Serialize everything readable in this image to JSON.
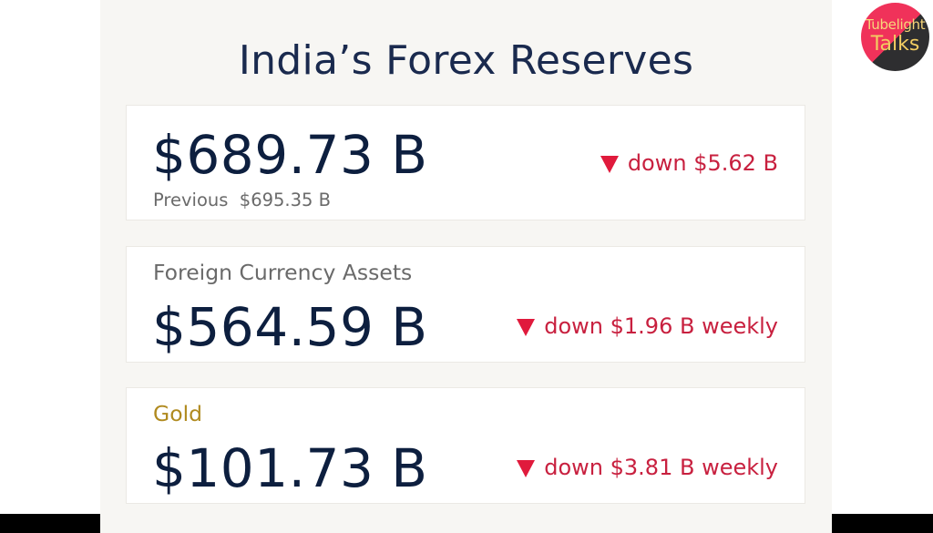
{
  "title": "India’s Forex Reserves",
  "logo": {
    "line1": "Tubelight",
    "line2": "Talks",
    "icon": "microphone-icon",
    "colors": {
      "top": "#f0325a",
      "bottom": "#2e2e30",
      "text": "#f2cd62"
    }
  },
  "cards": [
    {
      "value": "$689.73 B",
      "previous": "Previous  $695.35 B",
      "change": "down $5.62 B",
      "direction": "down"
    },
    {
      "label": "Foreign Currency Assets",
      "value": "$564.59 B",
      "change": "down $1.96 B weekly",
      "direction": "down"
    },
    {
      "label": "Gold",
      "value": "$101.73 B",
      "change": "down $3.81 B weekly",
      "direction": "down"
    }
  ],
  "colors": {
    "title": "#1a2a4e",
    "value": "#0d1f3f",
    "down": "#c8203f",
    "gold_label": "#b08a1f",
    "panel_bg": "#f7f6f3"
  }
}
